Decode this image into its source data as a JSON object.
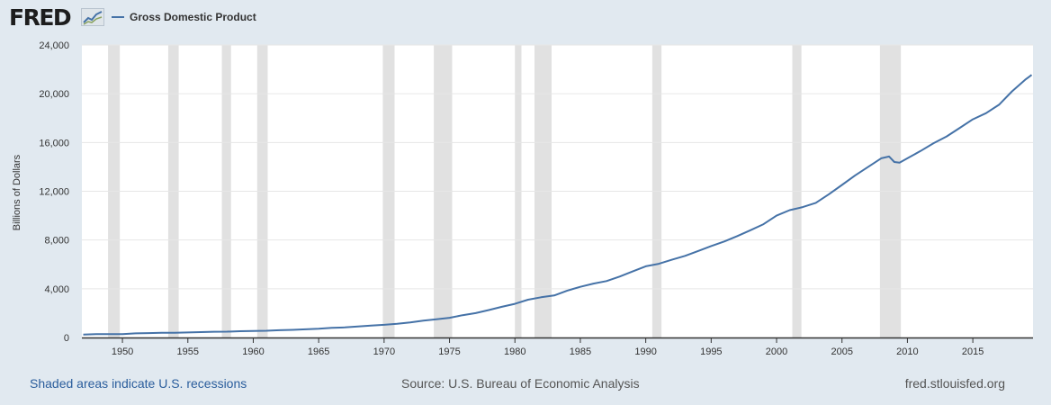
{
  "header": {
    "logo_text": "FRED",
    "logo_icon": "chart-line-icon",
    "legend_label": "Gross Domestic Product"
  },
  "footer": {
    "recession_note": "Shaded areas indicate U.S. recessions",
    "source": "Source: U.S. Bureau of Economic Analysis",
    "site": "fred.stlouisfed.org"
  },
  "colors": {
    "background": "#e1e9f0",
    "plot_background": "#ffffff",
    "series": "#4572a7",
    "recession": "#e1e1e1",
    "gridline": "#e6e6e6"
  },
  "chart_data": {
    "type": "line",
    "ylabel": "Billions of Dollars",
    "xlim": [
      1946.9,
      2019.6
    ],
    "ylim": [
      0,
      24000
    ],
    "yticks": [
      0,
      4000,
      8000,
      12000,
      16000,
      20000,
      24000
    ],
    "ytick_labels": [
      "0",
      "4,000",
      "8,000",
      "12,000",
      "16,000",
      "20,000",
      "24,000"
    ],
    "xticks": [
      1950,
      1955,
      1960,
      1965,
      1970,
      1975,
      1980,
      1985,
      1990,
      1995,
      2000,
      2005,
      2010,
      2015
    ],
    "grid": true,
    "legend_position": "top-left",
    "recessions": [
      [
        1948.9,
        1949.8
      ],
      [
        1953.5,
        1954.3
      ],
      [
        1957.6,
        1958.3
      ],
      [
        1960.3,
        1961.1
      ],
      [
        1969.9,
        1970.8
      ],
      [
        1973.8,
        1975.2
      ],
      [
        1980.0,
        1980.5
      ],
      [
        1981.5,
        1982.8
      ],
      [
        1990.5,
        1991.2
      ],
      [
        2001.2,
        2001.9
      ],
      [
        2007.9,
        2009.5
      ]
    ],
    "series": [
      {
        "name": "Gross Domestic Product",
        "points": [
          [
            1947.0,
            243
          ],
          [
            1948.0,
            270
          ],
          [
            1949.0,
            272
          ],
          [
            1950.0,
            280
          ],
          [
            1951.0,
            340
          ],
          [
            1952.0,
            360
          ],
          [
            1953.0,
            385
          ],
          [
            1954.0,
            390
          ],
          [
            1955.0,
            415
          ],
          [
            1956.0,
            440
          ],
          [
            1957.0,
            475
          ],
          [
            1958.0,
            480
          ],
          [
            1959.0,
            520
          ],
          [
            1960.0,
            540
          ],
          [
            1961.0,
            555
          ],
          [
            1962.0,
            600
          ],
          [
            1963.0,
            630
          ],
          [
            1964.0,
            675
          ],
          [
            1965.0,
            720
          ],
          [
            1966.0,
            790
          ],
          [
            1967.0,
            830
          ],
          [
            1968.0,
            900
          ],
          [
            1969.0,
            975
          ],
          [
            1970.0,
            1040
          ],
          [
            1971.0,
            1120
          ],
          [
            1972.0,
            1230
          ],
          [
            1973.0,
            1380
          ],
          [
            1974.0,
            1500
          ],
          [
            1975.0,
            1620
          ],
          [
            1976.0,
            1830
          ],
          [
            1977.0,
            2000
          ],
          [
            1978.0,
            2250
          ],
          [
            1979.0,
            2520
          ],
          [
            1980.0,
            2760
          ],
          [
            1981.0,
            3100
          ],
          [
            1982.0,
            3300
          ],
          [
            1983.0,
            3450
          ],
          [
            1984.0,
            3850
          ],
          [
            1985.0,
            4160
          ],
          [
            1986.0,
            4420
          ],
          [
            1987.0,
            4630
          ],
          [
            1988.0,
            5000
          ],
          [
            1989.0,
            5420
          ],
          [
            1990.0,
            5840
          ],
          [
            1991.0,
            6050
          ],
          [
            1992.0,
            6380
          ],
          [
            1993.0,
            6700
          ],
          [
            1994.0,
            7100
          ],
          [
            1995.0,
            7500
          ],
          [
            1996.0,
            7880
          ],
          [
            1997.0,
            8320
          ],
          [
            1998.0,
            8800
          ],
          [
            1999.0,
            9300
          ],
          [
            2000.0,
            10000
          ],
          [
            2001.0,
            10450
          ],
          [
            2002.0,
            10700
          ],
          [
            2003.0,
            11050
          ],
          [
            2004.0,
            11760
          ],
          [
            2005.0,
            12520
          ],
          [
            2006.0,
            13300
          ],
          [
            2007.0,
            14000
          ],
          [
            2008.0,
            14700
          ],
          [
            2008.6,
            14850
          ],
          [
            2009.0,
            14400
          ],
          [
            2009.4,
            14350
          ],
          [
            2010.0,
            14700
          ],
          [
            2011.0,
            15300
          ],
          [
            2012.0,
            15940
          ],
          [
            2013.0,
            16500
          ],
          [
            2014.0,
            17200
          ],
          [
            2015.0,
            17900
          ],
          [
            2016.0,
            18400
          ],
          [
            2017.0,
            19100
          ],
          [
            2018.0,
            20200
          ],
          [
            2019.0,
            21150
          ],
          [
            2019.5,
            21550
          ]
        ]
      }
    ]
  }
}
